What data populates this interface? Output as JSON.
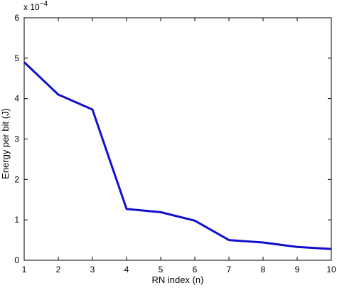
{
  "chart_data": {
    "type": "line",
    "title": "",
    "xlabel": "RN index (n)",
    "ylabel": "Energy per bit (J)",
    "y_multiplier_label": "x 10",
    "y_multiplier_exponent": "−4",
    "xlim": [
      1,
      10
    ],
    "ylim": [
      0,
      6
    ],
    "xticks": [
      "1",
      "2",
      "3",
      "4",
      "5",
      "6",
      "7",
      "8",
      "9",
      "10"
    ],
    "yticks": [
      "0",
      "1",
      "2",
      "3",
      "4",
      "5",
      "6"
    ],
    "grid": false,
    "series": [
      {
        "color": "#1111cc",
        "x": [
          1,
          2,
          3,
          4,
          5,
          6,
          7,
          8,
          9,
          10
        ],
        "y": [
          4.9,
          4.1,
          3.73,
          1.27,
          1.19,
          0.98,
          0.5,
          0.44,
          0.33,
          0.28
        ]
      }
    ]
  }
}
